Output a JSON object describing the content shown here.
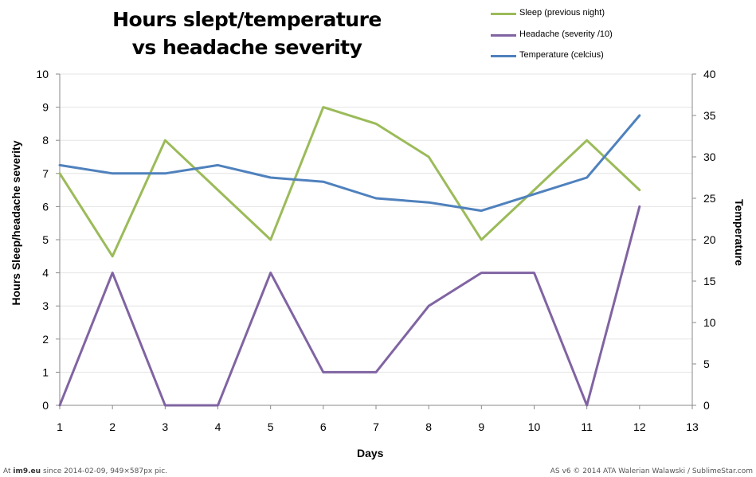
{
  "chart_data": {
    "type": "line",
    "title_line1": "Hours slept/temperature",
    "title_line2": "vs headache severity",
    "xlabel": "Days",
    "ylabel": "Hours Sleep/headache severity",
    "y2label": "Temperature",
    "xlim": [
      1,
      13
    ],
    "ylim": [
      0,
      10
    ],
    "y2lim": [
      0,
      40
    ],
    "xticks": [
      1,
      2,
      3,
      4,
      5,
      6,
      7,
      8,
      9,
      10,
      11,
      12,
      13
    ],
    "yticks": [
      0,
      1,
      2,
      3,
      4,
      5,
      6,
      7,
      8,
      9,
      10
    ],
    "y2ticks": [
      0,
      5,
      10,
      15,
      20,
      25,
      30,
      35,
      40
    ],
    "grid": "horizontal",
    "legend_position": "top-right",
    "series": [
      {
        "name": "Sleep (previous night)",
        "axis": "left",
        "color": "#9BBB59",
        "x": [
          1,
          2,
          3,
          4,
          5,
          6,
          7,
          8,
          9,
          10,
          11,
          12
        ],
        "values": [
          7,
          4.5,
          8,
          6.5,
          5,
          9,
          8.5,
          7.5,
          5,
          6.5,
          8,
          6.5
        ]
      },
      {
        "name": "Headache (severity /10)",
        "axis": "left",
        "color": "#8064A2",
        "x": [
          1,
          2,
          3,
          4,
          5,
          6,
          7,
          8,
          9,
          10,
          11,
          12
        ],
        "values": [
          0,
          4,
          0,
          0,
          4,
          1,
          1,
          3,
          4,
          4,
          0,
          6
        ]
      },
      {
        "name": "Temperature (celcius)",
        "axis": "right",
        "color": "#4F81BD",
        "x": [
          1,
          2,
          3,
          4,
          5,
          6,
          7,
          8,
          9,
          10,
          11,
          12
        ],
        "values": [
          29,
          28,
          28,
          29,
          27.5,
          27,
          25,
          24.5,
          23.5,
          25.5,
          27.5,
          35
        ]
      }
    ]
  },
  "footer": {
    "left_prefix": "At",
    "left_site": "im9.eu",
    "left_rest": "since 2014-02-09, 949×587px pic.",
    "right_text": "AS v6 © 2014 ATA Walerian Walawski / SublimeStar.com"
  }
}
